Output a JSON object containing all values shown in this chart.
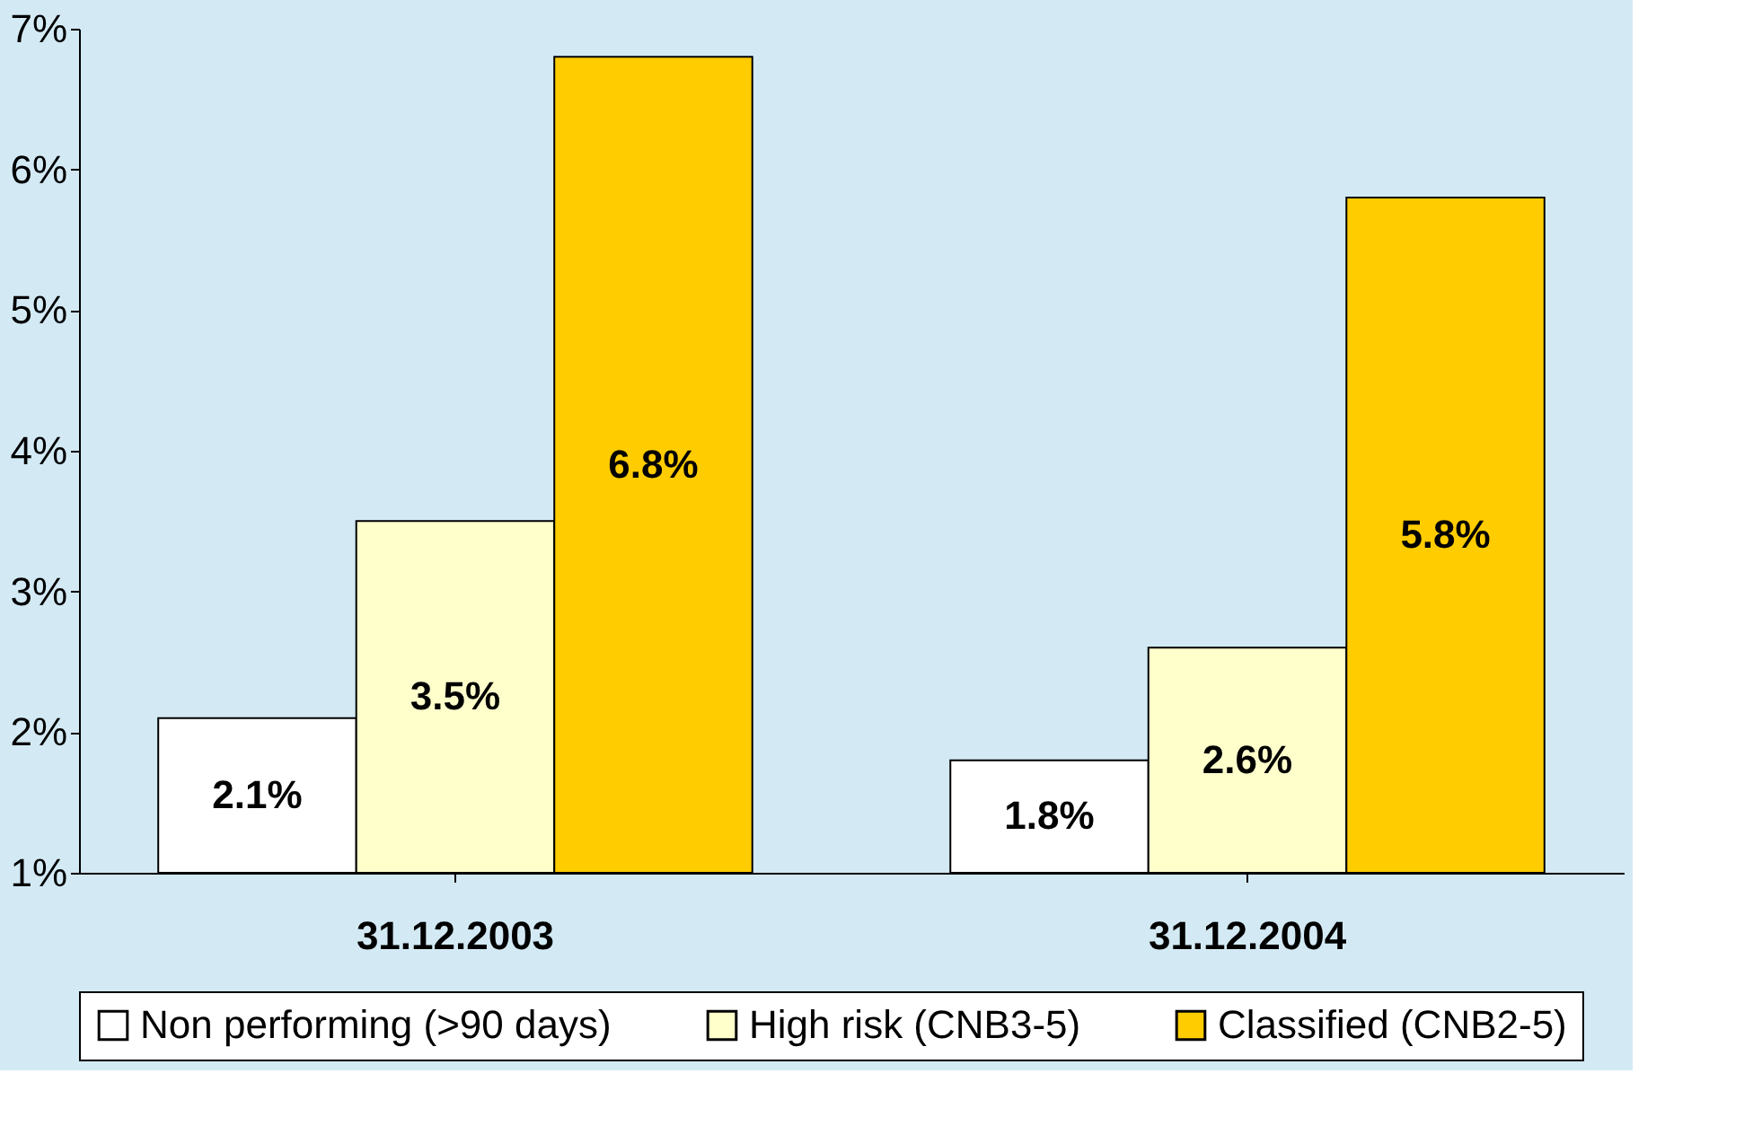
{
  "chart_data": {
    "type": "bar",
    "categories": [
      "31.12.2003",
      "31.12.2004"
    ],
    "series": [
      {
        "name": "Non performing (>90 days)",
        "color": "#ffffff",
        "values": [
          2.1,
          1.8
        ],
        "value_labels": [
          "2.1%",
          "1.8%"
        ]
      },
      {
        "name": "High risk (CNB3-5)",
        "color": "#ffffcc",
        "values": [
          3.5,
          2.6
        ],
        "value_labels": [
          "3.5%",
          "2.6%"
        ]
      },
      {
        "name": "Classified (CNB2-5)",
        "color": "#ffcc00",
        "values": [
          6.8,
          5.8
        ],
        "value_labels": [
          "6.8%",
          "5.8%"
        ]
      }
    ],
    "ylim": [
      1,
      7
    ],
    "yticks": [
      {
        "value": 1,
        "label": "1%"
      },
      {
        "value": 2,
        "label": "2%"
      },
      {
        "value": 3,
        "label": "3%"
      },
      {
        "value": 4,
        "label": "4%"
      },
      {
        "value": 5,
        "label": "5%"
      },
      {
        "value": 6,
        "label": "6%"
      },
      {
        "value": 7,
        "label": "7%"
      }
    ],
    "grid": false,
    "legend": "bottom"
  }
}
